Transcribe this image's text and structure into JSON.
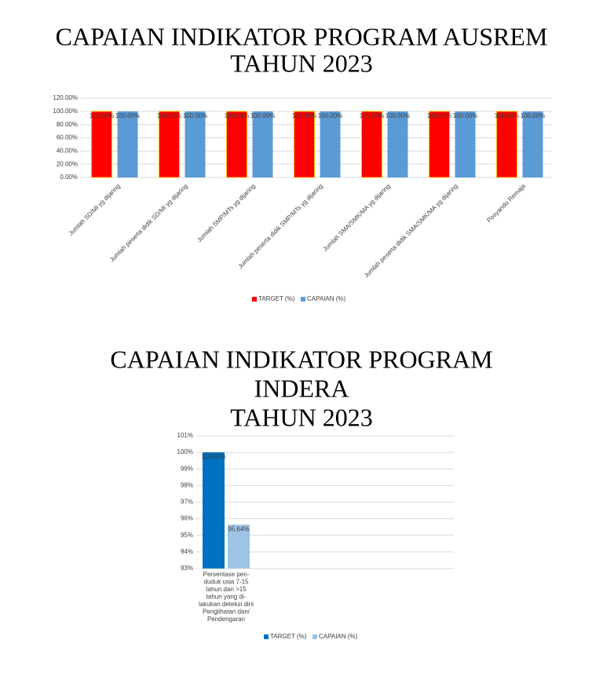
{
  "chart_data": [
    {
      "type": "bar",
      "title": [
        "CAPAIAN INDIKATOR PROGRAM AUSREM",
        "TAHUN 2023"
      ],
      "categories": [
        "Jumlah SD/MI yg dijaring",
        "Jumlah peserta didik SD/MI yg dijaring",
        "Jumlah SMP/MTs yg dijaring",
        "Jumlah peserta didik SMP/MTs yg dijaring",
        "Jumlah SMA/SMK/MA yg dijaring",
        "Jumlah peserta didik SMA/SMK/MA yg dijaring",
        "Posyandu Remaja"
      ],
      "series": [
        {
          "name": "TARGET (%)",
          "color": "#ff0000",
          "values": [
            100,
            100,
            100,
            100,
            100,
            100,
            100
          ],
          "value_labels": [
            "100.00%",
            "100.00%",
            "100.00%",
            "100.00%",
            "100.00%",
            "100.00%",
            "100.00%"
          ]
        },
        {
          "name": "CAPAIAN (%)",
          "color": "#5b9bd5",
          "values": [
            100,
            100,
            100,
            100,
            100,
            100,
            100
          ],
          "value_labels": [
            "100.00%",
            "100.00%",
            "100.00%",
            "100.00%",
            "100.00%",
            "100.00%",
            "100.00%"
          ]
        }
      ],
      "ylim": [
        0,
        120
      ],
      "yticks": [
        {
          "value": 0,
          "label": "0.00%"
        },
        {
          "value": 20,
          "label": "20.00%"
        },
        {
          "value": 40,
          "label": "40.00%"
        },
        {
          "value": 60,
          "label": "60.00%"
        },
        {
          "value": 80,
          "label": "80.00%"
        },
        {
          "value": 100,
          "label": "100.00%"
        },
        {
          "value": 120,
          "label": "120.00%"
        }
      ],
      "grid": true,
      "legend": "bottom"
    },
    {
      "type": "bar",
      "title": [
        "CAPAIAN INDIKATOR PROGRAM",
        "INDERA",
        "TAHUN 2023"
      ],
      "categories": [
        [
          "Persentase pen-",
          "duduk usia 7-15",
          "tahun dan >15",
          "tahun yang di-",
          "lakukan deteksi dini",
          "Penglihatan dan/",
          "Pendengaran"
        ]
      ],
      "series": [
        {
          "name": "TARGET (%)",
          "color": "#0070c0",
          "values": [
            100
          ],
          "value_labels": [
            "100.00%"
          ]
        },
        {
          "name": "CAPAIAN (%)",
          "color": "#9dc3e6",
          "values": [
            95.64
          ],
          "value_labels": [
            "95.64%"
          ]
        }
      ],
      "ylim": [
        93,
        101
      ],
      "yticks": [
        {
          "value": 93,
          "label": "93%"
        },
        {
          "value": 94,
          "label": "94%"
        },
        {
          "value": 95,
          "label": "95%"
        },
        {
          "value": 96,
          "label": "96%"
        },
        {
          "value": 97,
          "label": "97%"
        },
        {
          "value": 98,
          "label": "98%"
        },
        {
          "value": 99,
          "label": "99%"
        },
        {
          "value": 100,
          "label": "100%"
        },
        {
          "value": 101,
          "label": "101%"
        }
      ],
      "grid": true,
      "legend": "bottom"
    }
  ]
}
